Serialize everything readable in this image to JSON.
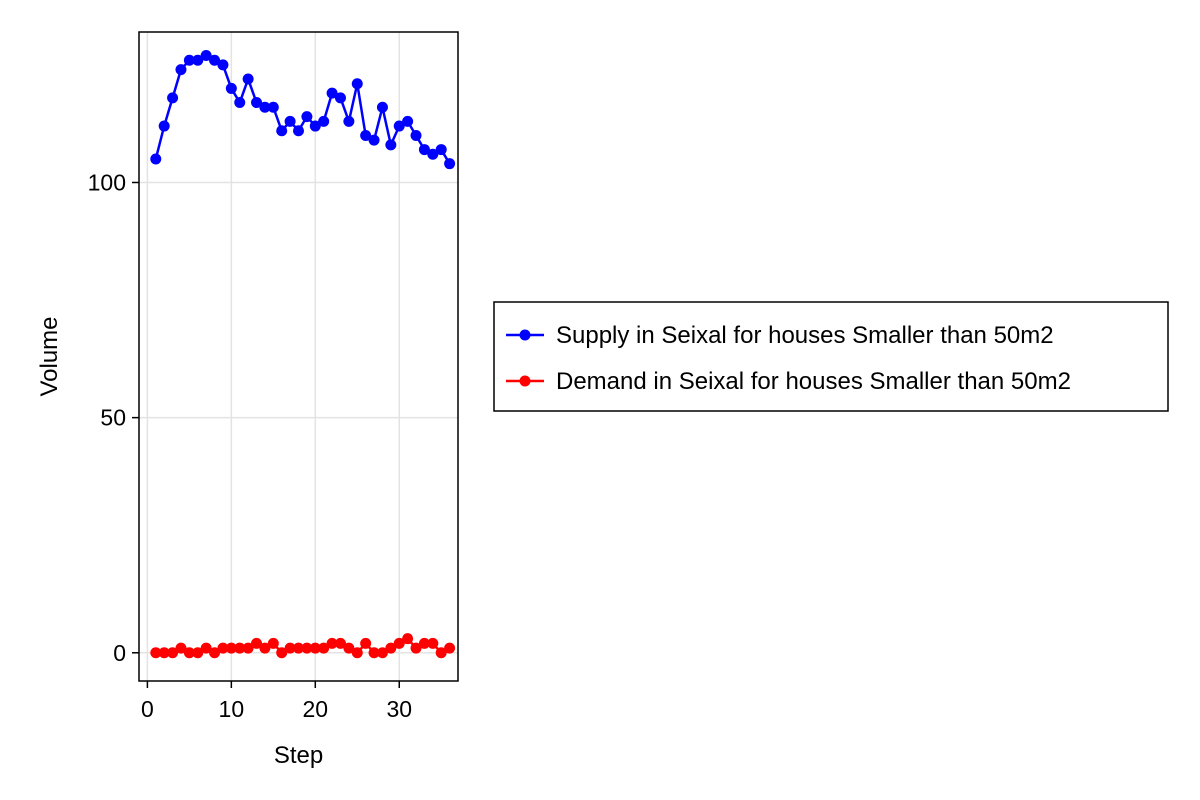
{
  "chart_data": {
    "type": "line",
    "title": "",
    "xlabel": "Step",
    "ylabel": "Volume",
    "xlim": [
      -1,
      37
    ],
    "ylim": [
      -6,
      132
    ],
    "xticks": [
      0,
      10,
      20,
      30
    ],
    "yticks": [
      0,
      50,
      100
    ],
    "grid": true,
    "legend_position": "right, outside",
    "x": [
      1,
      2,
      3,
      4,
      5,
      6,
      7,
      8,
      9,
      10,
      11,
      12,
      13,
      14,
      15,
      16,
      17,
      18,
      19,
      20,
      21,
      22,
      23,
      24,
      25,
      26,
      27,
      28,
      29,
      30,
      31,
      32,
      33,
      34,
      35,
      36
    ],
    "series": [
      {
        "name": "Supply in Seixal for houses Smaller than 50m2",
        "color": "#0000ff",
        "values": [
          105,
          112,
          118,
          124,
          126,
          126,
          127,
          126,
          125,
          120,
          117,
          122,
          117,
          116,
          116,
          111,
          113,
          111,
          114,
          112,
          113,
          119,
          118,
          113,
          121,
          110,
          109,
          116,
          108,
          112,
          113,
          110,
          107,
          106,
          107,
          104
        ]
      },
      {
        "name": "Demand in Seixal for houses Smaller than 50m2",
        "color": "#ff0000",
        "values": [
          0,
          0,
          0,
          1,
          0,
          0,
          1,
          0,
          1,
          1,
          1,
          1,
          2,
          1,
          2,
          0,
          1,
          1,
          1,
          1,
          1,
          2,
          2,
          1,
          0,
          2,
          0,
          0,
          1,
          2,
          3,
          1,
          2,
          2,
          0,
          1
        ]
      }
    ]
  }
}
